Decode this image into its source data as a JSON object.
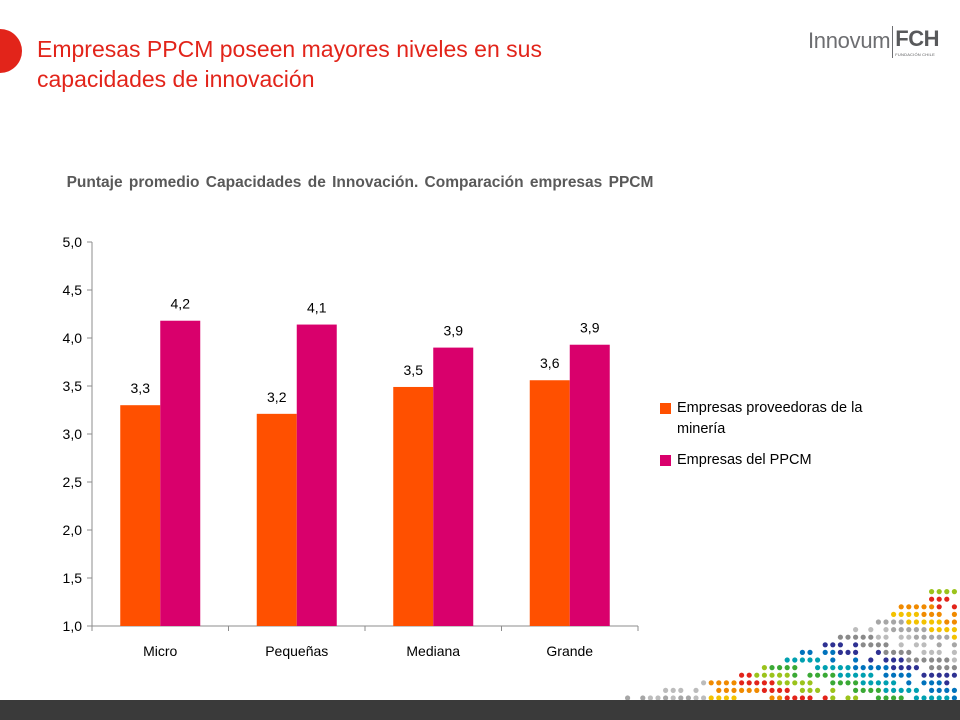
{
  "slide": {
    "title": "Empresas PPCM poseen mayores niveles en sus capacidades de innovación",
    "accent_color": "#e2241a"
  },
  "logo": {
    "word": "Innovum",
    "mark": "FCH",
    "sub": "FUNDACIÓN CHILE"
  },
  "chart_data": {
    "type": "bar",
    "title": "Puntaje promedio Capacidades de Innovación. Comparación empresas PPCM",
    "categories": [
      "Micro",
      "Pequeñas",
      "Mediana",
      "Grande"
    ],
    "series": [
      {
        "name": "Empresas proveedoras de la minería",
        "color": "#ff5000",
        "values": [
          3.3,
          3.21,
          3.49,
          3.56
        ],
        "labels": [
          "3,3",
          "3,2",
          "3,5",
          "3,6"
        ]
      },
      {
        "name": "Empresas del PPCM",
        "color": "#d9006c",
        "values": [
          4.18,
          4.14,
          3.9,
          3.93
        ],
        "labels": [
          "4,2",
          "4,1",
          "3,9",
          "3,9"
        ]
      }
    ],
    "ylim": [
      1.0,
      5.0
    ],
    "yticks": [
      "1,0",
      "1,5",
      "2,0",
      "2,5",
      "3,0",
      "3,5",
      "4,0",
      "4,5",
      "5,0"
    ],
    "grid": false,
    "legend_position": "right"
  }
}
